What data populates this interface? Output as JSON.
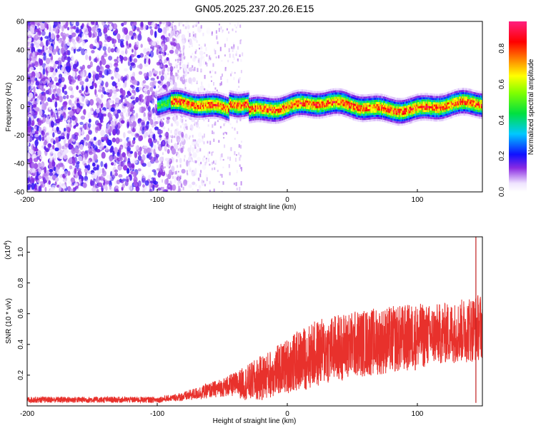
{
  "title": "GN05.2025.237.20.26.E15",
  "chart_data": [
    {
      "type": "heatmap",
      "name": "spectrogram",
      "xlabel": "Height of straight line (km)",
      "ylabel": "Frequency (Hz)",
      "xlim": [
        -200,
        150
      ],
      "ylim": [
        -60,
        60
      ],
      "x_ticks": [
        -200,
        -100,
        0,
        100
      ],
      "y_ticks": [
        -60,
        -40,
        -20,
        0,
        20,
        40,
        60
      ],
      "colorbar": {
        "label": "Normalized spectral amplitude",
        "range": [
          0,
          0.95
        ],
        "ticks": [
          0.0,
          0.2,
          0.4,
          0.6,
          0.8
        ],
        "tick_labels": [
          "0.0",
          "0.2",
          "0.4",
          "0.6",
          "0.8"
        ]
      },
      "description_bands": [
        {
          "x_start": -200,
          "x_end": -100,
          "pattern": "broadband noise",
          "amplitude": 0.08
        },
        {
          "x_start": -100,
          "x_end": 150,
          "pattern": "narrow band centered near 0 Hz",
          "center_hz": 2,
          "half_width_hz": 7,
          "peak_amplitude": 0.9
        }
      ]
    },
    {
      "type": "line",
      "name": "snr",
      "xlabel": "Height of straight line (km)",
      "ylabel": "SNR (10 * v/v)",
      "y_scale_label": "(x10",
      "y_scale_exp": "4",
      "y_scale_close": ")",
      "xlim": [
        -200,
        150
      ],
      "ylim": [
        0,
        1.1
      ],
      "x_ticks": [
        -200,
        -100,
        0,
        100
      ],
      "y_ticks": [
        0.2,
        0.4,
        0.6,
        0.8,
        1.0
      ],
      "y_tick_labels": [
        "0.2",
        "0.4",
        "0.6",
        "0.8",
        "1.0"
      ],
      "series": [
        {
          "name": "SNR",
          "color": "#e8312c",
          "x": [
            -200,
            -180,
            -160,
            -140,
            -120,
            -100,
            -90,
            -80,
            -70,
            -60,
            -50,
            -40,
            -30,
            -20,
            -10,
            0,
            10,
            20,
            30,
            40,
            50,
            60,
            70,
            80,
            90,
            100,
            110,
            120,
            130,
            140,
            150
          ],
          "values": [
            0.04,
            0.04,
            0.04,
            0.04,
            0.04,
            0.04,
            0.05,
            0.06,
            0.08,
            0.1,
            0.12,
            0.14,
            0.15,
            0.18,
            0.22,
            0.26,
            0.3,
            0.33,
            0.36,
            0.38,
            0.4,
            0.41,
            0.42,
            0.43,
            0.44,
            0.45,
            0.46,
            0.47,
            0.48,
            0.5,
            0.52
          ],
          "noise": [
            0.02,
            0.02,
            0.02,
            0.02,
            0.02,
            0.02,
            0.02,
            0.03,
            0.04,
            0.05,
            0.06,
            0.08,
            0.12,
            0.15,
            0.16,
            0.18,
            0.2,
            0.22,
            0.22,
            0.22,
            0.22,
            0.22,
            0.22,
            0.22,
            0.22,
            0.22,
            0.2,
            0.2,
            0.2,
            0.22,
            0.22
          ],
          "spike": {
            "x": 145,
            "value": 1.1
          }
        }
      ]
    }
  ]
}
